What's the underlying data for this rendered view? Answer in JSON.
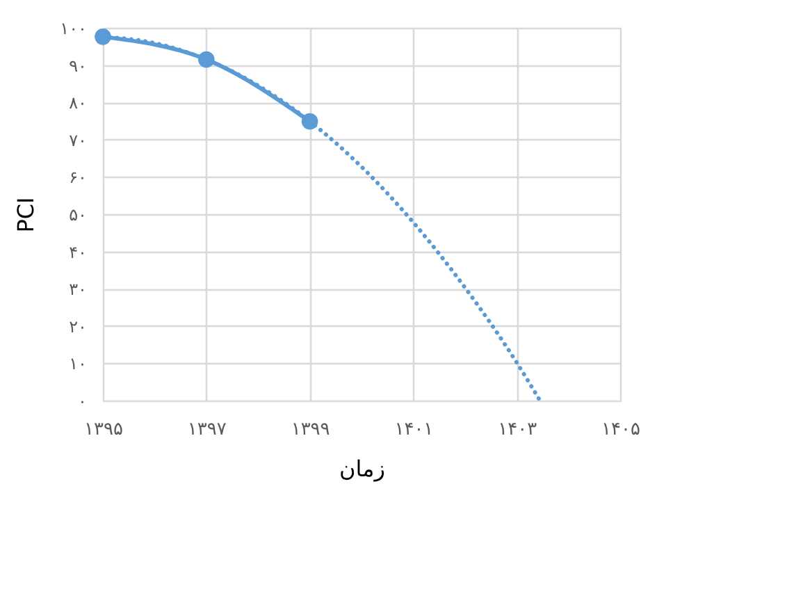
{
  "chart_data": {
    "type": "line",
    "xlabel": "زمان",
    "ylabel": "PCI",
    "xlim": [
      1395,
      1405
    ],
    "ylim": [
      0,
      100
    ],
    "xticks": [
      {
        "value": 1395,
        "label": "۱۳۹۵"
      },
      {
        "value": 1397,
        "label": "۱۳۹۷"
      },
      {
        "value": 1399,
        "label": "۱۳۹۹"
      },
      {
        "value": 1401,
        "label": "۱۴۰۱"
      },
      {
        "value": 1403,
        "label": "۱۴۰۳"
      },
      {
        "value": 1405,
        "label": "۱۴۰۵"
      }
    ],
    "yticks": [
      {
        "value": 0,
        "label": "۰"
      },
      {
        "value": 10,
        "label": "۱۰"
      },
      {
        "value": 20,
        "label": "۲۰"
      },
      {
        "value": 30,
        "label": "۳۰"
      },
      {
        "value": 40,
        "label": "۴۰"
      },
      {
        "value": 50,
        "label": "۵۰"
      },
      {
        "value": 60,
        "label": "۶۰"
      },
      {
        "value": 70,
        "label": "۷۰"
      },
      {
        "value": 80,
        "label": "۸۰"
      },
      {
        "value": 90,
        "label": "۹۰"
      },
      {
        "value": 100,
        "label": "۱۰۰"
      }
    ],
    "grid": true,
    "series": [
      {
        "color": "#5b9bd5",
        "marker": "circle",
        "line_style": "solid",
        "x": [
          1395,
          1397,
          1399
        ],
        "values": [
          97.6,
          91.5,
          74.9
        ]
      },
      {
        "color": "#5b9bd5",
        "marker": "none",
        "line_style": "dotted",
        "x": [
          1395,
          1396,
          1397,
          1398,
          1399,
          1400,
          1401,
          1402,
          1403,
          1403.45
        ],
        "values": [
          97.6,
          95.9,
          91.5,
          84.5,
          74.9,
          62.7,
          47.8,
          30.3,
          10.2,
          0
        ]
      }
    ]
  }
}
